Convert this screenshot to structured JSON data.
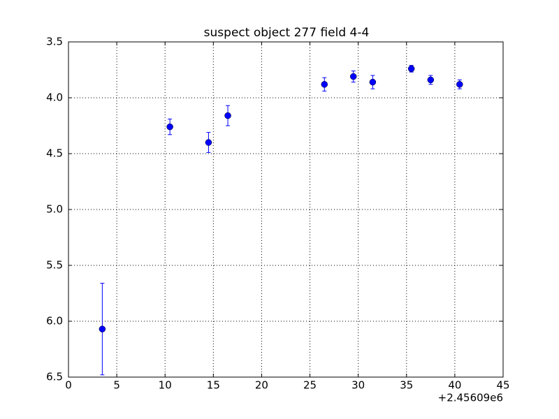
{
  "chart_data": {
    "type": "errorbar",
    "title": "suspect object 277 field 4-4",
    "x_offset_label": "+2.45609e6",
    "x": [
      3.5,
      10.5,
      14.5,
      16.5,
      26.5,
      29.5,
      31.5,
      35.5,
      37.5,
      40.5
    ],
    "values": [
      6.07,
      4.26,
      4.4,
      4.16,
      3.88,
      3.81,
      3.86,
      3.74,
      3.84,
      3.88
    ],
    "errors": [
      0.41,
      0.07,
      0.09,
      0.09,
      0.06,
      0.05,
      0.06,
      0.03,
      0.04,
      0.04
    ],
    "color": "#0000ff",
    "xlim": [
      0,
      45
    ],
    "xticks": [
      0,
      5,
      10,
      15,
      20,
      25,
      30,
      35,
      40,
      45
    ],
    "ylim": [
      3.5,
      6.5
    ],
    "y_inverted": true,
    "yticks": [
      3.5,
      {
        "value": 4,
        "label": "4.0"
      },
      4.5,
      {
        "value": 5,
        "label": "5.0"
      },
      5.5,
      {
        "value": 6,
        "label": "6.0"
      },
      6.5
    ],
    "grid": true
  }
}
